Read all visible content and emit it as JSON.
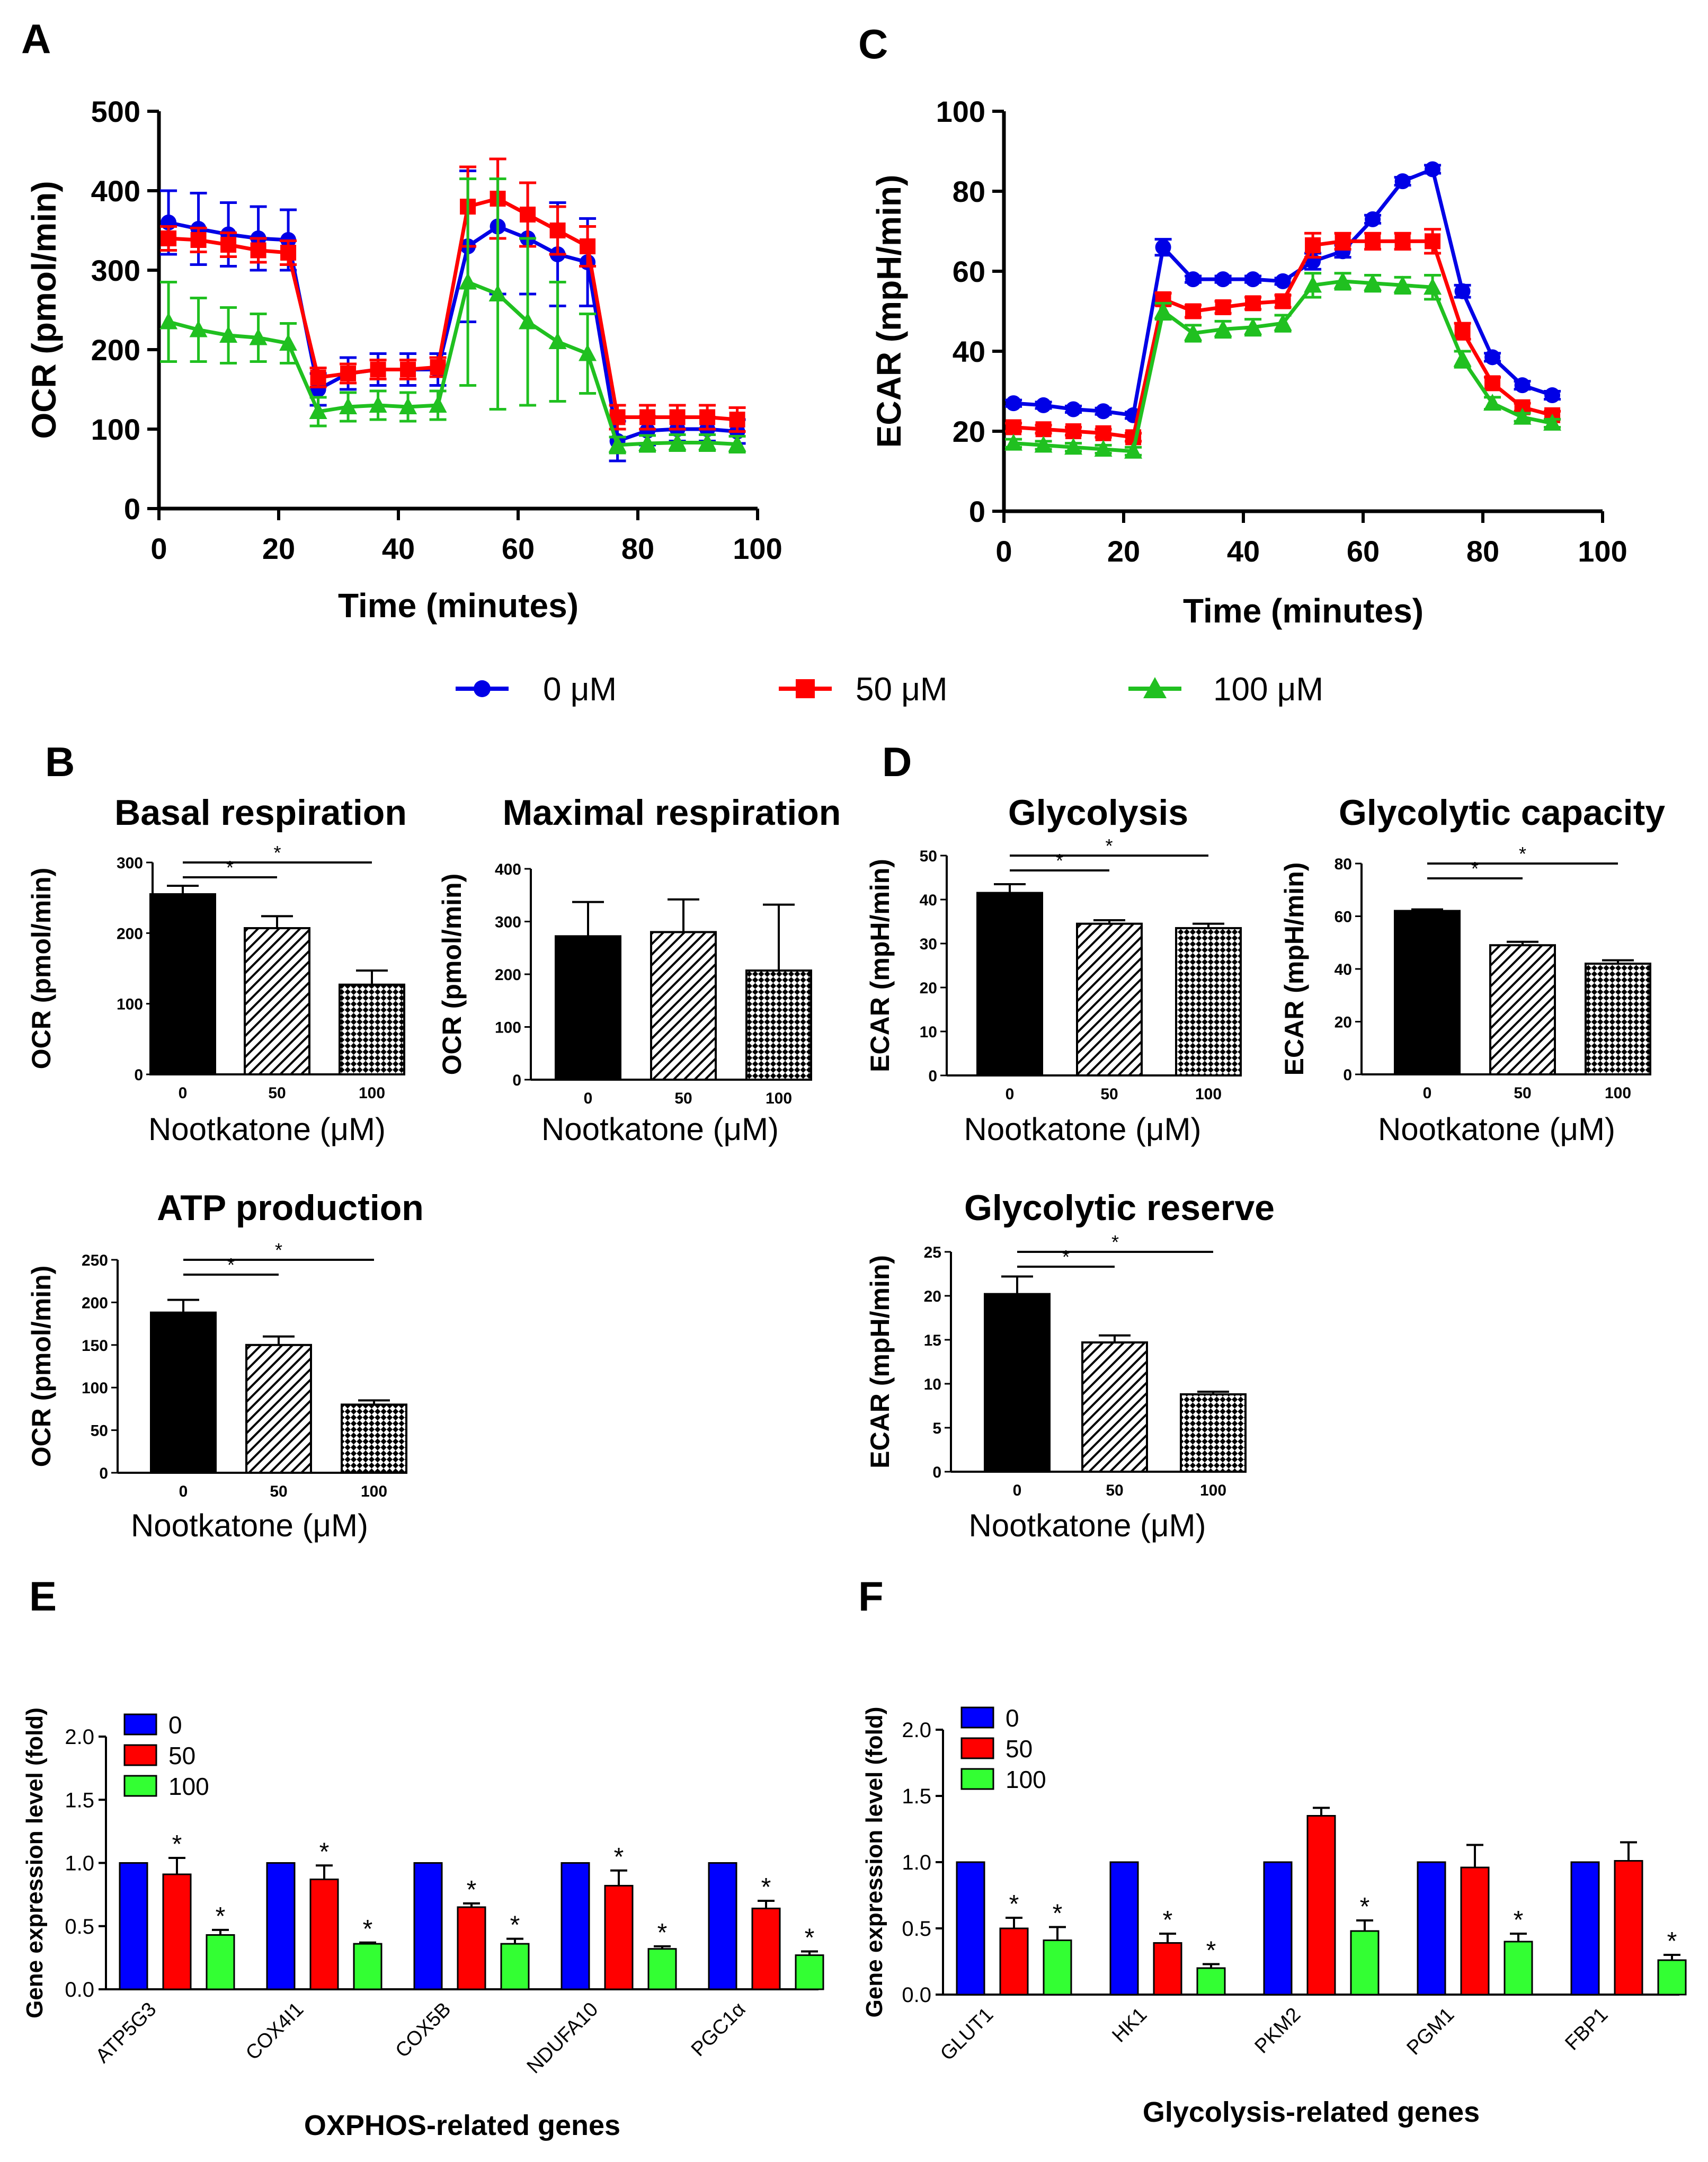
{
  "colors": {
    "blue": "#0000e6",
    "red": "#ff0000",
    "green": "#20c020",
    "bar_blue": "#0000ff",
    "bar_red": "#ff0000",
    "bar_green": "#33ff33"
  },
  "panel_labels": {
    "a": "A",
    "b": "B",
    "c": "C",
    "d": "D",
    "e": "E",
    "f": "F"
  },
  "legend": {
    "series": [
      "0 μM",
      "50 μM",
      "100 μM"
    ]
  },
  "chart_data": [
    {
      "id": "ocr",
      "type": "line",
      "panel": "A",
      "title": "",
      "xlabel": "Time (minutes)",
      "ylabel": "OCR (pmol/min)",
      "xlim": [
        0,
        100
      ],
      "ylim": [
        0,
        500
      ],
      "xticks": [
        "0",
        "20",
        "40",
        "60",
        "80",
        "100"
      ],
      "yticks": [
        "0",
        "100",
        "200",
        "300",
        "400",
        "500"
      ],
      "series": [
        {
          "name": "0 μM",
          "x": [
            1.6,
            6.6,
            11.6,
            16.6,
            21.6,
            26.6,
            31.6,
            36.6,
            41.6,
            46.6,
            51.6,
            56.6,
            61.6,
            66.6,
            71.6,
            76.6,
            81.6,
            86.6,
            91.6,
            96.6
          ],
          "y": [
            360,
            352,
            345,
            340,
            338,
            150,
            170,
            175,
            175,
            175,
            330,
            355,
            340,
            320,
            310,
            85,
            98,
            100,
            100,
            97
          ],
          "err": [
            40,
            45,
            40,
            40,
            38,
            20,
            20,
            20,
            20,
            20,
            95,
            85,
            70,
            65,
            55,
            25,
            18,
            15,
            15,
            15
          ]
        },
        {
          "name": "50 μM",
          "x": [
            1.6,
            6.6,
            11.6,
            16.6,
            21.6,
            26.6,
            31.6,
            36.6,
            41.6,
            46.6,
            51.6,
            56.6,
            61.6,
            66.6,
            71.6,
            76.6,
            81.6,
            86.6,
            91.6,
            96.6
          ],
          "y": [
            340,
            338,
            332,
            325,
            322,
            165,
            170,
            175,
            175,
            178,
            380,
            390,
            370,
            350,
            330,
            115,
            115,
            115,
            115,
            112
          ],
          "err": [
            15,
            15,
            15,
            15,
            15,
            12,
            12,
            12,
            12,
            12,
            50,
            50,
            40,
            30,
            25,
            15,
            15,
            15,
            15,
            15
          ]
        },
        {
          "name": "100 μM",
          "x": [
            1.6,
            6.6,
            11.6,
            16.6,
            21.6,
            26.6,
            31.6,
            36.6,
            41.6,
            46.6,
            51.6,
            56.6,
            61.6,
            66.6,
            71.6,
            76.6,
            81.6,
            86.6,
            91.6,
            96.6
          ],
          "y": [
            235,
            225,
            218,
            215,
            208,
            122,
            128,
            130,
            128,
            130,
            285,
            270,
            235,
            210,
            195,
            80,
            82,
            83,
            83,
            81
          ],
          "err": [
            50,
            40,
            35,
            30,
            25,
            18,
            18,
            18,
            18,
            18,
            130,
            145,
            105,
            75,
            50,
            10,
            10,
            10,
            10,
            10
          ]
        }
      ]
    },
    {
      "id": "ecar",
      "type": "line",
      "panel": "C",
      "title": "",
      "xlabel": "Time (minutes)",
      "ylabel": "ECAR (mpH/min)",
      "xlim": [
        0,
        100
      ],
      "ylim": [
        0,
        100
      ],
      "xticks": [
        "0",
        "20",
        "40",
        "60",
        "80",
        "100"
      ],
      "yticks": [
        "0",
        "20",
        "40",
        "60",
        "80",
        "100"
      ],
      "series": [
        {
          "name": "0 μM",
          "x": [
            1.6,
            6.6,
            11.6,
            16.6,
            21.6,
            26.6,
            31.6,
            36.6,
            41.6,
            46.6,
            51.6,
            56.6,
            61.6,
            66.6,
            71.6,
            76.6,
            81.6,
            86.6,
            91.6
          ],
          "y": [
            27,
            26.5,
            25.5,
            25,
            24,
            66,
            58,
            58,
            58,
            57.5,
            62.5,
            65,
            73,
            82.5,
            85.5,
            55,
            38.5,
            31.5,
            29
          ],
          "err": [
            0.8,
            0.8,
            0.8,
            0.8,
            0.8,
            2,
            0.8,
            0.8,
            0.8,
            0.8,
            2,
            1.5,
            1,
            1,
            1,
            1.5,
            1,
            1,
            1
          ]
        },
        {
          "name": "50 μM",
          "x": [
            1.6,
            6.6,
            11.6,
            16.6,
            21.6,
            26.6,
            31.6,
            36.6,
            41.6,
            46.6,
            51.6,
            56.6,
            61.6,
            66.6,
            71.6,
            76.6,
            81.6,
            86.6,
            91.6
          ],
          "y": [
            21,
            20.5,
            20,
            19.5,
            18.5,
            53,
            50,
            51,
            52,
            52.5,
            66.5,
            67.5,
            67.5,
            67.5,
            67.5,
            45,
            32,
            26,
            24
          ],
          "err": [
            1,
            1,
            1,
            1,
            1,
            1.5,
            1.5,
            1.5,
            1.5,
            1.5,
            3,
            2,
            2,
            2,
            3,
            2,
            1.5,
            1,
            1
          ]
        },
        {
          "name": "100 μM",
          "x": [
            1.6,
            6.6,
            11.6,
            16.6,
            21.6,
            26.6,
            31.6,
            36.6,
            41.6,
            46.6,
            51.6,
            56.6,
            61.6,
            66.6,
            71.6,
            76.6,
            81.6,
            86.6,
            91.6
          ],
          "y": [
            17,
            16.5,
            16,
            15.5,
            15,
            50,
            44.5,
            45.5,
            46,
            47,
            56.5,
            57.5,
            57,
            56.5,
            56,
            38,
            27,
            23.5,
            22
          ],
          "err": [
            1,
            1,
            1,
            1,
            1,
            2,
            2,
            2,
            2,
            2,
            3,
            2,
            2,
            2,
            3,
            2,
            1.5,
            1,
            1
          ]
        }
      ]
    },
    {
      "id": "basal",
      "type": "bar",
      "panel": "B",
      "title": "Basal respiration",
      "xlabel": "Nootkatone (μM)",
      "ylabel": "OCR (pmol/min)",
      "categories": [
        "0",
        "50",
        "100"
      ],
      "values": [
        255,
        207,
        127
      ],
      "errors": [
        12,
        17,
        20
      ],
      "ylim": [
        0,
        300
      ],
      "yticks": [
        "0",
        "100",
        "200",
        "300"
      ],
      "sig": [
        {
          "to": 1,
          "label": "*"
        },
        {
          "to": 2,
          "label": "*"
        }
      ]
    },
    {
      "id": "maximal",
      "type": "bar",
      "panel": "B",
      "title": "Maximal respiration",
      "xlabel": "Nootkatone (μM)",
      "ylabel": "OCR (pmol/min)",
      "categories": [
        "0",
        "50",
        "100"
      ],
      "values": [
        272,
        280,
        207
      ],
      "errors": [
        65,
        62,
        125
      ],
      "ylim": [
        0,
        400
      ],
      "yticks": [
        "0",
        "100",
        "200",
        "300",
        "400"
      ],
      "sig": []
    },
    {
      "id": "atp",
      "type": "bar",
      "panel": "B",
      "title": "ATP production",
      "xlabel": "Nootkatone (μM)",
      "ylabel": "OCR (pmol/min)",
      "categories": [
        "0",
        "50",
        "100"
      ],
      "values": [
        188,
        150,
        80
      ],
      "errors": [
        15,
        10,
        5
      ],
      "ylim": [
        0,
        250
      ],
      "yticks": [
        "0",
        "50",
        "100",
        "150",
        "200",
        "250"
      ],
      "sig": [
        {
          "to": 1,
          "label": "*"
        },
        {
          "to": 2,
          "label": "*"
        }
      ]
    },
    {
      "id": "glycolysis",
      "type": "bar",
      "panel": "D",
      "title": "Glycolysis",
      "xlabel": "Nootkatone (μM)",
      "ylabel": "ECAR (mpH/min)",
      "categories": [
        "0",
        "50",
        "100"
      ],
      "values": [
        41.5,
        34.5,
        33.5
      ],
      "errors": [
        2,
        0.8,
        1
      ],
      "ylim": [
        0,
        50
      ],
      "yticks": [
        "0",
        "10",
        "20",
        "30",
        "40",
        "50"
      ],
      "sig": [
        {
          "to": 1,
          "label": "*"
        },
        {
          "to": 2,
          "label": "*"
        }
      ]
    },
    {
      "id": "capacity",
      "type": "bar",
      "panel": "D",
      "title": "Glycolytic capacity",
      "xlabel": "Nootkatone (μM)",
      "ylabel": "ECAR (mpH/min)",
      "categories": [
        "0",
        "50",
        "100"
      ],
      "values": [
        62,
        49,
        42
      ],
      "errors": [
        0.6,
        1.3,
        1.3
      ],
      "ylim": [
        0,
        80
      ],
      "yticks": [
        "0",
        "20",
        "40",
        "60",
        "80"
      ],
      "sig": [
        {
          "to": 1,
          "label": "*"
        },
        {
          "to": 2,
          "label": "*"
        }
      ]
    },
    {
      "id": "reserve",
      "type": "bar",
      "panel": "D",
      "title": "Glycolytic reserve",
      "xlabel": "Nootkatone (μM)",
      "ylabel": "ECAR (mpH/min)",
      "categories": [
        "0",
        "50",
        "100"
      ],
      "values": [
        20.2,
        14.7,
        8.8
      ],
      "errors": [
        2,
        0.8,
        0.3
      ],
      "ylim": [
        0,
        25
      ],
      "yticks": [
        "0",
        "5",
        "10",
        "15",
        "20",
        "25"
      ],
      "sig": [
        {
          "to": 1,
          "label": "*"
        },
        {
          "to": 2,
          "label": "*"
        }
      ]
    },
    {
      "id": "oxphos",
      "type": "bar",
      "panel": "E",
      "title": "",
      "xlabel": "OXPHOS-related genes",
      "ylabel": "Gene expression level (fold)",
      "categories": [
        "ATP5G3",
        "COX4I1",
        "COX5B",
        "NDUFA10",
        "PGC1α"
      ],
      "ylim": [
        0,
        2.0
      ],
      "yticks": [
        "0.0",
        "0.5",
        "1.0",
        "1.5",
        "2.0"
      ],
      "legend_labels": [
        "0",
        "50",
        "100"
      ],
      "series": [
        {
          "name": "0",
          "values": [
            1.0,
            1.0,
            1.0,
            1.0,
            1.0
          ],
          "errors": [
            0,
            0,
            0,
            0,
            0
          ],
          "stars": [
            "",
            "",
            "",
            "",
            ""
          ]
        },
        {
          "name": "50",
          "values": [
            0.91,
            0.87,
            0.65,
            0.82,
            0.64
          ],
          "errors": [
            0.13,
            0.11,
            0.03,
            0.12,
            0.06
          ],
          "stars": [
            "*",
            "*",
            "*",
            "*",
            "*"
          ]
        },
        {
          "name": "100",
          "values": [
            0.43,
            0.36,
            0.36,
            0.32,
            0.27
          ],
          "errors": [
            0.04,
            0.01,
            0.04,
            0.02,
            0.03
          ],
          "stars": [
            "*",
            "*",
            "*",
            "*",
            "*"
          ]
        }
      ]
    },
    {
      "id": "glyco",
      "type": "bar",
      "panel": "F",
      "title": "",
      "xlabel": "Glycolysis-related genes",
      "ylabel": "Gene expression level (fold)",
      "categories": [
        "GLUT1",
        "HK1",
        "PKM2",
        "PGM1",
        "FBP1"
      ],
      "ylim": [
        0,
        2.0
      ],
      "yticks": [
        "0.0",
        "0.5",
        "1.0",
        "1.5",
        "2.0"
      ],
      "legend_labels": [
        "0",
        "50",
        "100"
      ],
      "series": [
        {
          "name": "0",
          "values": [
            1.0,
            1.0,
            1.0,
            1.0,
            1.0
          ],
          "errors": [
            0,
            0,
            0,
            0,
            0
          ],
          "stars": [
            "",
            "",
            "",
            "",
            ""
          ]
        },
        {
          "name": "50",
          "values": [
            0.5,
            0.39,
            1.35,
            0.96,
            1.01
          ],
          "errors": [
            0.08,
            0.07,
            0.06,
            0.17,
            0.14
          ],
          "stars": [
            "*",
            "*",
            "",
            "",
            ""
          ]
        },
        {
          "name": "100",
          "values": [
            0.41,
            0.2,
            0.48,
            0.4,
            0.26
          ],
          "errors": [
            0.1,
            0.03,
            0.08,
            0.06,
            0.04
          ],
          "stars": [
            "*",
            "*",
            "*",
            "*",
            "*"
          ]
        }
      ]
    }
  ]
}
